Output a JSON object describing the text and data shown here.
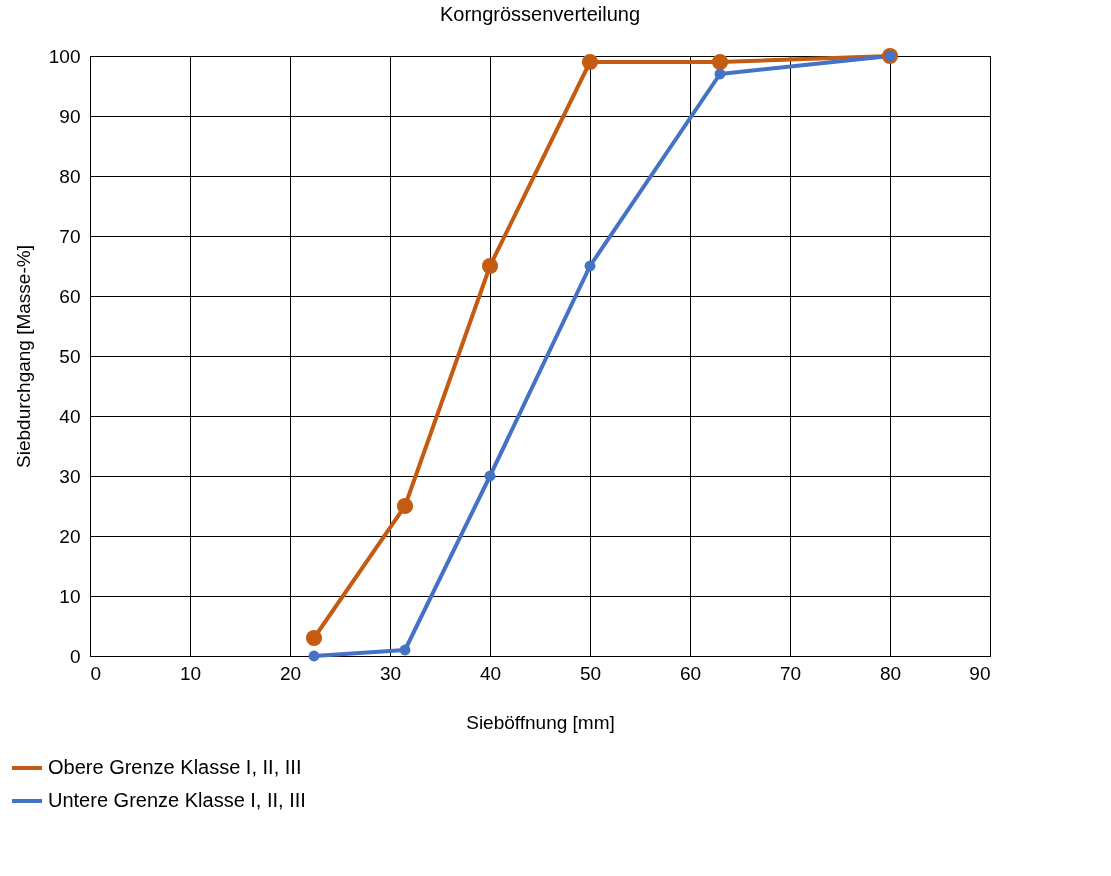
{
  "chart_data": {
    "type": "line",
    "title": "Korngrössenverteilung",
    "xlabel": "Sieböffnung [mm]",
    "ylabel": "Siebdurchgang [Masse-%]",
    "x": [
      22.4,
      31.5,
      40,
      50,
      63,
      80
    ],
    "series": [
      {
        "name": "Obere Grenze Klasse I, II, III",
        "color": "#c55a11",
        "values": [
          3,
          25,
          65,
          99,
          99,
          100
        ]
      },
      {
        "name": "Untere Grenze Klasse I, II, III",
        "color": "#4472c4",
        "values": [
          0,
          1,
          30,
          65,
          97,
          100
        ]
      }
    ],
    "xlim": [
      0,
      90
    ],
    "xticks": [
      0,
      10,
      20,
      30,
      40,
      50,
      60,
      70,
      80,
      90
    ],
    "ylim": [
      0,
      100
    ],
    "yticks": [
      0,
      10,
      20,
      30,
      40,
      50,
      60,
      70,
      80,
      90,
      100
    ],
    "grid": true,
    "legend": "bottom left",
    "marker": "circle",
    "line_style": "solid"
  }
}
